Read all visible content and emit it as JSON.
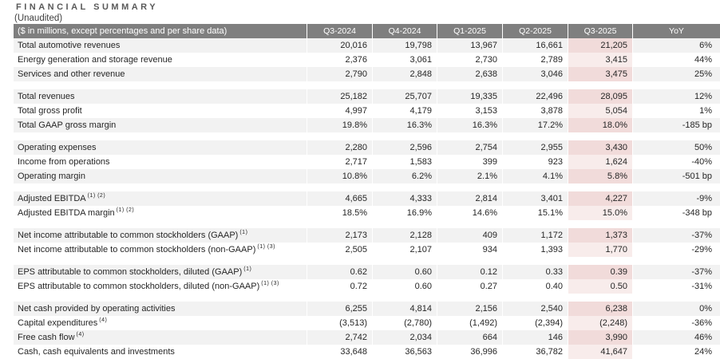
{
  "page": {
    "title": "FINANCIAL SUMMARY",
    "subtitle": "(Unaudited)"
  },
  "table": {
    "header": {
      "label": "($ in millions, except percentages and per share data)",
      "columns": [
        "Q3-2024",
        "Q4-2024",
        "Q1-2025",
        "Q2-2025",
        "Q3-2025",
        "YoY"
      ],
      "highlight_column": "Q3-2025"
    },
    "colors": {
      "header_bg": "#7f7f7f",
      "header_text": "#ffffff",
      "stripe_bg": "#f2f2f2",
      "highlight_bg_on_stripe": "#f1dbda",
      "highlight_bg_on_white": "#f8eceb",
      "text": "#262626"
    },
    "sections": [
      {
        "rows": [
          {
            "label": "Total automotive revenues",
            "sup": "",
            "values": [
              "20,016",
              "19,798",
              "13,967",
              "16,661",
              "21,205",
              "6%"
            ]
          },
          {
            "label": "Energy generation and storage revenue",
            "sup": "",
            "values": [
              "2,376",
              "3,061",
              "2,730",
              "2,789",
              "3,415",
              "44%"
            ]
          },
          {
            "label": "Services and other revenue",
            "sup": "",
            "values": [
              "2,790",
              "2,848",
              "2,638",
              "3,046",
              "3,475",
              "25%"
            ]
          }
        ]
      },
      {
        "rows": [
          {
            "label": "Total revenues",
            "sup": "",
            "values": [
              "25,182",
              "25,707",
              "19,335",
              "22,496",
              "28,095",
              "12%"
            ]
          },
          {
            "label": "Total gross profit",
            "sup": "",
            "values": [
              "4,997",
              "4,179",
              "3,153",
              "3,878",
              "5,054",
              "1%"
            ]
          },
          {
            "label": "Total GAAP gross margin",
            "sup": "",
            "values": [
              "19.8%",
              "16.3%",
              "16.3%",
              "17.2%",
              "18.0%",
              "-185 bp"
            ]
          }
        ]
      },
      {
        "rows": [
          {
            "label": "Operating expenses",
            "sup": "",
            "values": [
              "2,280",
              "2,596",
              "2,754",
              "2,955",
              "3,430",
              "50%"
            ]
          },
          {
            "label": "Income from operations",
            "sup": "",
            "values": [
              "2,717",
              "1,583",
              "399",
              "923",
              "1,624",
              "-40%"
            ]
          },
          {
            "label": "Operating margin",
            "sup": "",
            "values": [
              "10.8%",
              "6.2%",
              "2.1%",
              "4.1%",
              "5.8%",
              "-501 bp"
            ]
          }
        ]
      },
      {
        "rows": [
          {
            "label": "Adjusted EBITDA",
            "sup": "(1) (2)",
            "values": [
              "4,665",
              "4,333",
              "2,814",
              "3,401",
              "4,227",
              "-9%"
            ]
          },
          {
            "label": "Adjusted EBITDA margin",
            "sup": "(1) (2)",
            "values": [
              "18.5%",
              "16.9%",
              "14.6%",
              "15.1%",
              "15.0%",
              "-348 bp"
            ]
          }
        ]
      },
      {
        "rows": [
          {
            "label": "Net income attributable to common stockholders (GAAP)",
            "sup": "(1)",
            "values": [
              "2,173",
              "2,128",
              "409",
              "1,172",
              "1,373",
              "-37%"
            ]
          },
          {
            "label": "Net income attributable to common stockholders (non-GAAP)",
            "sup": "(1) (3)",
            "values": [
              "2,505",
              "2,107",
              "934",
              "1,393",
              "1,770",
              "-29%"
            ]
          }
        ]
      },
      {
        "rows": [
          {
            "label": "EPS attributable to common stockholders, diluted (GAAP)",
            "sup": "(1)",
            "values": [
              "0.62",
              "0.60",
              "0.12",
              "0.33",
              "0.39",
              "-37%"
            ]
          },
          {
            "label": "EPS attributable to common stockholders, diluted (non-GAAP)",
            "sup": "(1) (3)",
            "values": [
              "0.72",
              "0.60",
              "0.27",
              "0.40",
              "0.50",
              "-31%"
            ]
          }
        ]
      },
      {
        "rows": [
          {
            "label": "Net cash provided by operating activities",
            "sup": "",
            "values": [
              "6,255",
              "4,814",
              "2,156",
              "2,540",
              "6,238",
              "0%"
            ]
          },
          {
            "label": "Capital expenditures",
            "sup": "(4)",
            "values": [
              "(3,513)",
              "(2,780)",
              "(1,492)",
              "(2,394)",
              "(2,248)",
              "-36%"
            ]
          },
          {
            "label": "Free cash flow",
            "sup": "(4)",
            "values": [
              "2,742",
              "2,034",
              "664",
              "146",
              "3,990",
              "46%"
            ]
          },
          {
            "label": "Cash, cash equivalents and investments",
            "sup": "",
            "values": [
              "33,648",
              "36,563",
              "36,996",
              "36,782",
              "41,647",
              "24%"
            ]
          }
        ]
      }
    ]
  }
}
